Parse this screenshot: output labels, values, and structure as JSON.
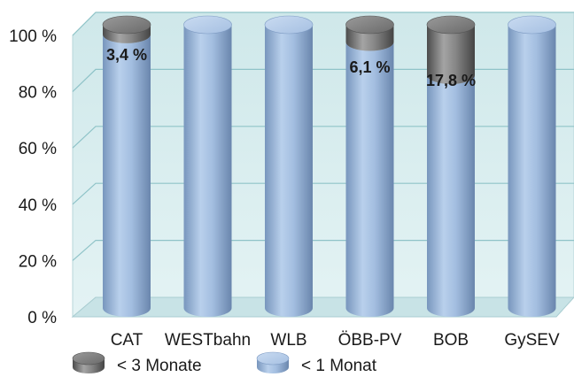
{
  "chart_data": {
    "type": "bar",
    "stacked": true,
    "categories": [
      "CAT",
      "WESTbahn",
      "WLB",
      "ÖBB-PV",
      "BOB",
      "GySEV"
    ],
    "series": [
      {
        "name": "< 1 Monat",
        "values": [
          96.6,
          100,
          100,
          93.9,
          82.2,
          100
        ],
        "color": "#9cbbe0"
      },
      {
        "name": "< 3 Monate",
        "values": [
          3.4,
          0,
          0,
          6.1,
          17.8,
          0
        ],
        "color": "#707070"
      }
    ],
    "data_labels": [
      {
        "category": "CAT",
        "text": "3,4 %"
      },
      {
        "category": "ÖBB-PV",
        "text": "6,1 %"
      },
      {
        "category": "BOB",
        "text": "17,8 %"
      }
    ],
    "y_ticks": [
      {
        "value": 0,
        "label": "0 %"
      },
      {
        "value": 20,
        "label": "20 %"
      },
      {
        "value": 40,
        "label": "40 %"
      },
      {
        "value": 60,
        "label": "60 %"
      },
      {
        "value": 80,
        "label": "80 %"
      },
      {
        "value": 100,
        "label": "100 %"
      }
    ],
    "ylim": [
      0,
      100
    ],
    "grid": true,
    "legend": {
      "placement": "bottom-left",
      "items": [
        "< 3 Monate",
        "< 1 Monat"
      ]
    },
    "style": "3d-cylinder",
    "colors": {
      "wall": "#d6ecee",
      "grid": "#8fc3c8",
      "floor": "#c8e3e6"
    }
  }
}
